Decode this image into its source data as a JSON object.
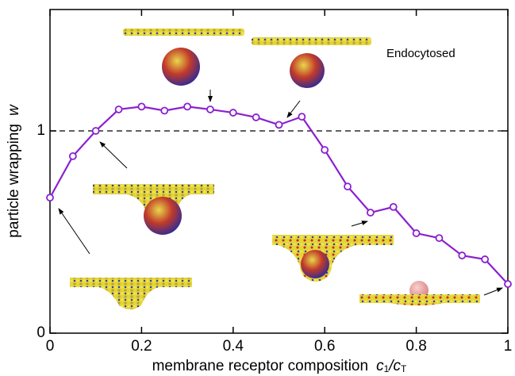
{
  "chart_data": {
    "type": "line",
    "annotation": "Endocytosed",
    "xlabel": "membrane receptor composition",
    "xlabel_symbol": [
      "c",
      "1",
      "/c",
      "T"
    ],
    "ylabel": "particle wrapping",
    "ylabel_symbol": "w",
    "x": [
      0,
      0.05,
      0.1,
      0.15,
      0.2,
      0.25,
      0.3,
      0.35,
      0.4,
      0.45,
      0.5,
      0.55,
      0.6,
      0.65,
      0.7,
      0.75,
      0.8,
      0.85,
      0.9,
      0.95,
      1.0
    ],
    "series": [
      {
        "color": "#8b1fd1",
        "values": [
          0.67,
          0.875,
          1.0,
          1.106,
          1.12,
          1.1,
          1.12,
          1.106,
          1.09,
          1.067,
          1.03,
          1.07,
          0.906,
          0.725,
          0.596,
          0.624,
          0.494,
          0.47,
          0.384,
          0.365,
          0.243
        ]
      }
    ],
    "xlim": [
      0,
      1
    ],
    "ylim": [
      0,
      1.6
    ],
    "xticks": [
      0,
      0.2,
      0.4,
      0.6,
      0.8,
      1
    ],
    "yticks": [
      0,
      1
    ],
    "reference_line": 1
  }
}
